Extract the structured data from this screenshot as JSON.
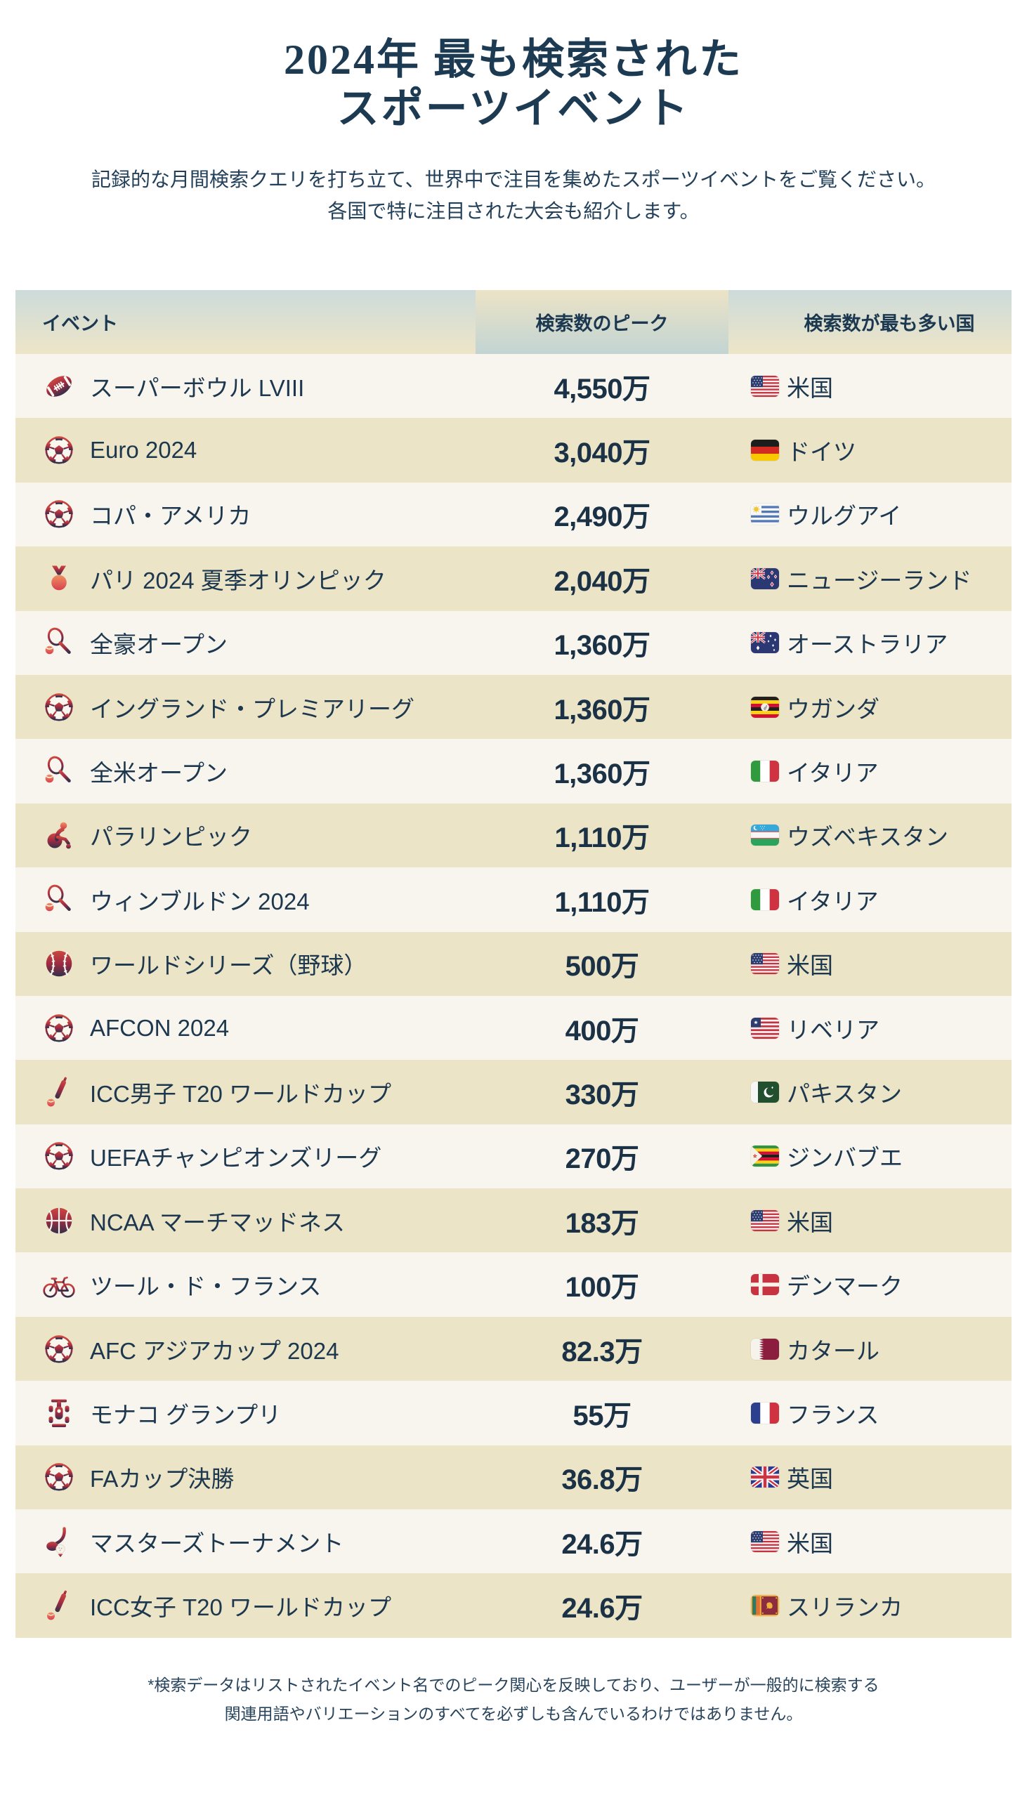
{
  "page": {
    "title_lines": [
      "2024年 最も検索された",
      "スポーツイベント"
    ],
    "subtitle_lines": [
      "記録的な月間検索クエリを打ち立て、世界中で注目を集めたスポーツイベントをご覧ください。",
      "各国で特に注目された大会も紹介します。"
    ],
    "footnote_lines": [
      "*検索データはリストされたイベント名でのピーク関心を反映しており、ユーザーが一般的に検索する",
      "関連用語やバリエーションのすべてを必ずしも含んでいるわけではありません。"
    ]
  },
  "table": {
    "columns": [
      "イベント",
      "検索数のピーク",
      "検索数が最も多い国"
    ],
    "rows": [
      {
        "event": "スーパーボウル LVIII",
        "icon": "american-football-icon",
        "peak": "4,550万",
        "flag": "us-flag",
        "country": "米国"
      },
      {
        "event": "Euro 2024",
        "icon": "soccer-ball-icon",
        "peak": "3,040万",
        "flag": "germany-flag",
        "country": "ドイツ"
      },
      {
        "event": "コパ・アメリカ",
        "icon": "soccer-ball-icon",
        "peak": "2,490万",
        "flag": "uruguay-flag",
        "country": "ウルグアイ"
      },
      {
        "event": "パリ 2024 夏季オリンピック",
        "icon": "medal-icon",
        "peak": "2,040万",
        "flag": "new-zealand-flag",
        "country": "ニュージーランド"
      },
      {
        "event": "全豪オープン",
        "icon": "tennis-icon",
        "peak": "1,360万",
        "flag": "australia-flag",
        "country": "オーストラリア"
      },
      {
        "event": "イングランド・プレミアリーグ",
        "icon": "soccer-ball-icon",
        "peak": "1,360万",
        "flag": "uganda-flag",
        "country": "ウガンダ"
      },
      {
        "event": "全米オープン",
        "icon": "tennis-icon",
        "peak": "1,360万",
        "flag": "italy-flag",
        "country": "イタリア"
      },
      {
        "event": "パラリンピック",
        "icon": "wheelchair-athlete-icon",
        "peak": "1,110万",
        "flag": "uzbekistan-flag",
        "country": "ウズベキスタン"
      },
      {
        "event": "ウィンブルドン 2024",
        "icon": "tennis-icon",
        "peak": "1,110万",
        "flag": "italy-flag",
        "country": "イタリア"
      },
      {
        "event": "ワールドシリーズ（野球）",
        "icon": "baseball-icon",
        "peak": "500万",
        "flag": "us-flag",
        "country": "米国"
      },
      {
        "event": "AFCON 2024",
        "icon": "soccer-ball-icon",
        "peak": "400万",
        "flag": "liberia-flag",
        "country": "リベリア"
      },
      {
        "event": "ICC男子 T20 ワールドカップ",
        "icon": "cricket-bat-icon",
        "peak": "330万",
        "flag": "pakistan-flag",
        "country": "パキスタン"
      },
      {
        "event": "UEFAチャンピオンズリーグ",
        "icon": "soccer-ball-icon",
        "peak": "270万",
        "flag": "zimbabwe-flag",
        "country": "ジンバブエ"
      },
      {
        "event": "NCAA マーチマッドネス",
        "icon": "basketball-icon",
        "peak": "183万",
        "flag": "us-flag",
        "country": "米国"
      },
      {
        "event": "ツール・ド・フランス",
        "icon": "bicycle-icon",
        "peak": "100万",
        "flag": "denmark-flag",
        "country": "デンマーク"
      },
      {
        "event": "AFC アジアカップ 2024",
        "icon": "soccer-ball-icon",
        "peak": "82.3万",
        "flag": "qatar-flag",
        "country": "カタール"
      },
      {
        "event": "モナコ グランプリ",
        "icon": "f1-car-icon",
        "peak": "55万",
        "flag": "france-flag",
        "country": "フランス"
      },
      {
        "event": "FAカップ決勝",
        "icon": "soccer-ball-icon",
        "peak": "36.8万",
        "flag": "uk-flag",
        "country": "英国"
      },
      {
        "event": "マスターズトーナメント",
        "icon": "golf-icon",
        "peak": "24.6万",
        "flag": "us-flag",
        "country": "米国"
      },
      {
        "event": "ICC女子 T20 ワールドカップ",
        "icon": "cricket-bat-icon",
        "peak": "24.6万",
        "flag": "sri-lanka-flag",
        "country": "スリランカ"
      }
    ]
  },
  "chart_data": {
    "type": "table",
    "title": "2024年 最も検索された スポーツイベント",
    "columns": [
      "イベント",
      "検索数のピーク",
      "検索数が最も多い国"
    ],
    "rows": [
      [
        "スーパーボウル LVIII",
        "4,550万",
        "米国"
      ],
      [
        "Euro 2024",
        "3,040万",
        "ドイツ"
      ],
      [
        "コパ・アメリカ",
        "2,490万",
        "ウルグアイ"
      ],
      [
        "パリ 2024 夏季オリンピック",
        "2,040万",
        "ニュージーランド"
      ],
      [
        "全豪オープン",
        "1,360万",
        "オーストラリア"
      ],
      [
        "イングランド・プレミアリーグ",
        "1,360万",
        "ウガンダ"
      ],
      [
        "全米オープン",
        "1,360万",
        "イタリア"
      ],
      [
        "パラリンピック",
        "1,110万",
        "ウズベキスタン"
      ],
      [
        "ウィンブルドン 2024",
        "1,110万",
        "イタリア"
      ],
      [
        "ワールドシリーズ（野球）",
        "500万",
        "米国"
      ],
      [
        "AFCON 2024",
        "400万",
        "リベリア"
      ],
      [
        "ICC男子 T20 ワールドカップ",
        "330万",
        "パキスタン"
      ],
      [
        "UEFAチャンピオンズリーグ",
        "270万",
        "ジンバブエ"
      ],
      [
        "NCAA マーチマッドネス",
        "183万",
        "米国"
      ],
      [
        "ツール・ド・フランス",
        "100万",
        "デンマーク"
      ],
      [
        "AFC アジアカップ 2024",
        "82.3万",
        "カタール"
      ],
      [
        "モナコ グランプリ",
        "55万",
        "フランス"
      ],
      [
        "FAカップ決勝",
        "36.8万",
        "英国"
      ],
      [
        "マスターズトーナメント",
        "24.6万",
        "米国"
      ],
      [
        "ICC女子 T20 ワールドカップ",
        "24.6万",
        "スリランカ"
      ]
    ],
    "peak_values_10k_units": [
      4550,
      3040,
      2490,
      2040,
      1360,
      1360,
      1360,
      1110,
      1110,
      500,
      400,
      330,
      270,
      183,
      100,
      82.3,
      55,
      36.8,
      24.6,
      24.6
    ]
  },
  "colors": {
    "text_navy": "#1c374e",
    "title_navy": "#1c3a52",
    "row_light": "#f8f5ee",
    "row_beige": "#ebe4c6",
    "header_teal": "#ccdbda",
    "header_beige": "#eee5c8",
    "icon_red": "#cc4840",
    "icon_dark": "#33304a"
  }
}
